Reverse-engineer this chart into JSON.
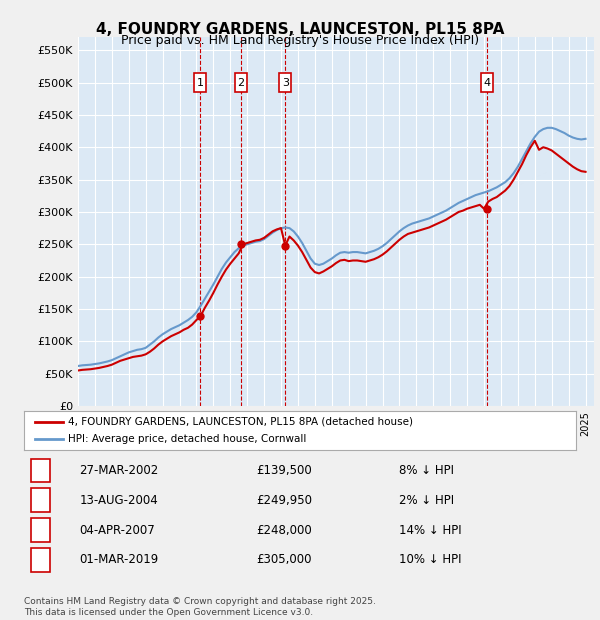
{
  "title": "4, FOUNDRY GARDENS, LAUNCESTON, PL15 8PA",
  "subtitle": "Price paid vs. HM Land Registry's House Price Index (HPI)",
  "ylabel_ticks": [
    "£0",
    "£50K",
    "£100K",
    "£150K",
    "£200K",
    "£250K",
    "£300K",
    "£350K",
    "£400K",
    "£450K",
    "£500K",
    "£550K"
  ],
  "ytick_vals": [
    0,
    50000,
    100000,
    150000,
    200000,
    250000,
    300000,
    350000,
    400000,
    450000,
    500000,
    550000
  ],
  "ylim": [
    0,
    570000
  ],
  "xlim_start": 1995.0,
  "xlim_end": 2025.5,
  "background_color": "#dce9f5",
  "plot_bg_color": "#dce9f5",
  "grid_color": "#ffffff",
  "legend_label_red": "4, FOUNDRY GARDENS, LAUNCESTON, PL15 8PA (detached house)",
  "legend_label_blue": "HPI: Average price, detached house, Cornwall",
  "red_line_color": "#cc0000",
  "blue_line_color": "#6699cc",
  "transaction_marker_color": "#cc0000",
  "vline_color": "#cc0000",
  "box_color": "#cc0000",
  "transactions": [
    {
      "num": 1,
      "date_dec": 2002.23,
      "price": 139500,
      "label": "1",
      "date_str": "27-MAR-2002",
      "pct": "8%",
      "dir": "↓"
    },
    {
      "num": 2,
      "date_dec": 2004.62,
      "price": 249950,
      "label": "2",
      "date_str": "13-AUG-2004",
      "pct": "2%",
      "dir": "↓"
    },
    {
      "num": 3,
      "date_dec": 2007.26,
      "price": 248000,
      "label": "3",
      "date_str": "04-APR-2007",
      "pct": "14%",
      "dir": "↓"
    },
    {
      "num": 4,
      "date_dec": 2019.17,
      "price": 305000,
      "label": "4",
      "date_str": "01-MAR-2019",
      "pct": "10%",
      "dir": "↓"
    }
  ],
  "footer": "Contains HM Land Registry data © Crown copyright and database right 2025.\nThis data is licensed under the Open Government Licence v3.0.",
  "hpi_data": {
    "years": [
      1995.0,
      1995.25,
      1995.5,
      1995.75,
      1996.0,
      1996.25,
      1996.5,
      1996.75,
      1997.0,
      1997.25,
      1997.5,
      1997.75,
      1998.0,
      1998.25,
      1998.5,
      1998.75,
      1999.0,
      1999.25,
      1999.5,
      1999.75,
      2000.0,
      2000.25,
      2000.5,
      2000.75,
      2001.0,
      2001.25,
      2001.5,
      2001.75,
      2002.0,
      2002.25,
      2002.5,
      2002.75,
      2003.0,
      2003.25,
      2003.5,
      2003.75,
      2004.0,
      2004.25,
      2004.5,
      2004.75,
      2005.0,
      2005.25,
      2005.5,
      2005.75,
      2006.0,
      2006.25,
      2006.5,
      2006.75,
      2007.0,
      2007.25,
      2007.5,
      2007.75,
      2008.0,
      2008.25,
      2008.5,
      2008.75,
      2009.0,
      2009.25,
      2009.5,
      2009.75,
      2010.0,
      2010.25,
      2010.5,
      2010.75,
      2011.0,
      2011.25,
      2011.5,
      2011.75,
      2012.0,
      2012.25,
      2012.5,
      2012.75,
      2013.0,
      2013.25,
      2013.5,
      2013.75,
      2014.0,
      2014.25,
      2014.5,
      2014.75,
      2015.0,
      2015.25,
      2015.5,
      2015.75,
      2016.0,
      2016.25,
      2016.5,
      2016.75,
      2017.0,
      2017.25,
      2017.5,
      2017.75,
      2018.0,
      2018.25,
      2018.5,
      2018.75,
      2019.0,
      2019.25,
      2019.5,
      2019.75,
      2020.0,
      2020.25,
      2020.5,
      2020.75,
      2021.0,
      2021.25,
      2021.5,
      2021.75,
      2022.0,
      2022.25,
      2022.5,
      2022.75,
      2023.0,
      2023.25,
      2023.5,
      2023.75,
      2024.0,
      2024.25,
      2024.5,
      2024.75,
      2025.0
    ],
    "values": [
      62000,
      63000,
      63500,
      64000,
      65000,
      66000,
      67500,
      69000,
      71000,
      74000,
      77000,
      80000,
      83000,
      85000,
      87000,
      88000,
      90000,
      95000,
      100000,
      106000,
      111000,
      115000,
      119000,
      122000,
      125000,
      129000,
      133000,
      138000,
      145000,
      155000,
      166000,
      177000,
      188000,
      200000,
      212000,
      222000,
      230000,
      238000,
      244000,
      248000,
      250000,
      252000,
      254000,
      255000,
      258000,
      263000,
      268000,
      272000,
      275000,
      276000,
      275000,
      270000,
      262000,
      252000,
      240000,
      228000,
      220000,
      218000,
      220000,
      224000,
      228000,
      233000,
      237000,
      238000,
      237000,
      238000,
      238000,
      237000,
      236000,
      238000,
      240000,
      243000,
      247000,
      252000,
      258000,
      264000,
      270000,
      275000,
      279000,
      282000,
      284000,
      286000,
      288000,
      290000,
      293000,
      296000,
      299000,
      302000,
      306000,
      310000,
      314000,
      317000,
      320000,
      323000,
      326000,
      328000,
      330000,
      332000,
      335000,
      338000,
      342000,
      346000,
      352000,
      360000,
      370000,
      382000,
      394000,
      406000,
      416000,
      424000,
      428000,
      430000,
      430000,
      428000,
      425000,
      422000,
      418000,
      415000,
      413000,
      412000,
      413000
    ]
  },
  "red_data": {
    "years": [
      1995.0,
      1995.25,
      1995.5,
      1995.75,
      1996.0,
      1996.25,
      1996.5,
      1996.75,
      1997.0,
      1997.25,
      1997.5,
      1997.75,
      1998.0,
      1998.25,
      1998.5,
      1998.75,
      1999.0,
      1999.25,
      1999.5,
      1999.75,
      2000.0,
      2000.25,
      2000.5,
      2000.75,
      2001.0,
      2001.25,
      2001.5,
      2001.75,
      2002.0,
      2002.25,
      2002.5,
      2002.75,
      2003.0,
      2003.25,
      2003.5,
      2003.75,
      2004.0,
      2004.25,
      2004.5,
      2004.75,
      2005.0,
      2005.25,
      2005.5,
      2005.75,
      2006.0,
      2006.25,
      2006.5,
      2006.75,
      2007.0,
      2007.25,
      2007.5,
      2007.75,
      2008.0,
      2008.25,
      2008.5,
      2008.75,
      2009.0,
      2009.25,
      2009.5,
      2009.75,
      2010.0,
      2010.25,
      2010.5,
      2010.75,
      2011.0,
      2011.25,
      2011.5,
      2011.75,
      2012.0,
      2012.25,
      2012.5,
      2012.75,
      2013.0,
      2013.25,
      2013.5,
      2013.75,
      2014.0,
      2014.25,
      2014.5,
      2014.75,
      2015.0,
      2015.25,
      2015.5,
      2015.75,
      2016.0,
      2016.25,
      2016.5,
      2016.75,
      2017.0,
      2017.25,
      2017.5,
      2017.75,
      2018.0,
      2018.25,
      2018.5,
      2018.75,
      2019.0,
      2019.25,
      2019.5,
      2019.75,
      2020.0,
      2020.25,
      2020.5,
      2020.75,
      2021.0,
      2021.25,
      2021.5,
      2021.75,
      2022.0,
      2022.25,
      2022.5,
      2022.75,
      2023.0,
      2023.25,
      2023.5,
      2023.75,
      2024.0,
      2024.25,
      2024.5,
      2024.75,
      2025.0
    ],
    "values": [
      55000,
      56000,
      56500,
      57000,
      58000,
      59000,
      60500,
      62000,
      64000,
      67000,
      70000,
      72000,
      74000,
      76000,
      77000,
      78000,
      80000,
      84000,
      89000,
      95000,
      100000,
      104000,
      108000,
      111000,
      114000,
      118000,
      121000,
      126000,
      133000,
      139500,
      152000,
      163000,
      175000,
      188000,
      200000,
      211000,
      220000,
      228000,
      236000,
      249950,
      252000,
      254000,
      256000,
      257000,
      260000,
      265000,
      270000,
      273000,
      275000,
      248000,
      262000,
      256000,
      248000,
      238000,
      226000,
      214000,
      207000,
      205000,
      208000,
      212000,
      216000,
      221000,
      225000,
      226000,
      224000,
      225000,
      225000,
      224000,
      223000,
      225000,
      227000,
      230000,
      234000,
      239000,
      245000,
      251000,
      257000,
      262000,
      266000,
      268000,
      270000,
      272000,
      274000,
      276000,
      279000,
      282000,
      285000,
      288000,
      292000,
      296000,
      300000,
      302000,
      305000,
      307000,
      309000,
      311000,
      305000,
      316000,
      320000,
      323000,
      328000,
      333000,
      340000,
      350000,
      362000,
      374000,
      388000,
      400000,
      410000,
      396000,
      400000,
      398000,
      395000,
      390000,
      385000,
      380000,
      375000,
      370000,
      366000,
      363000,
      362000
    ]
  }
}
